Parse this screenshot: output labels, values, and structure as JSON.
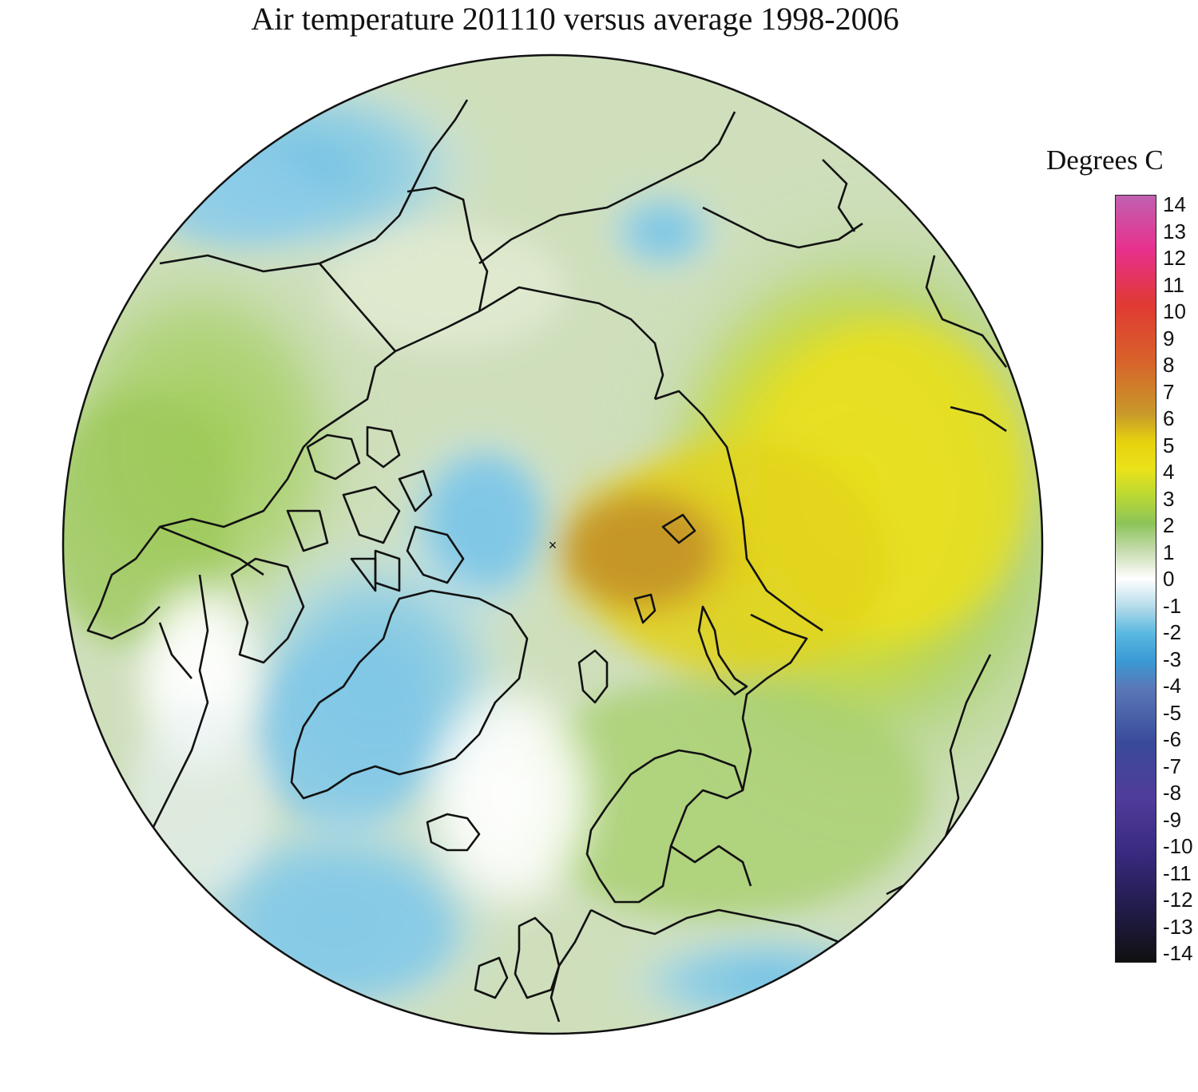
{
  "map": {
    "title": "Air temperature 201110 versus average 1998-2006",
    "projection": "north-polar-stereographic",
    "pole_marker": "×"
  },
  "legend": {
    "title": "Degrees C",
    "min": -14,
    "max": 14,
    "ticks": [
      "14",
      "13",
      "12",
      "11",
      "10",
      "9",
      "8",
      "7",
      "6",
      "5",
      "4",
      "3",
      "2",
      "1",
      "0",
      "-1",
      "-2",
      "-3",
      "-4",
      "-5",
      "-6",
      "-7",
      "-8",
      "-9",
      "-10",
      "-11",
      "-12",
      "-13",
      "-14"
    ],
    "colors": [
      {
        "v": 14,
        "c": "#c060b0"
      },
      {
        "v": 12,
        "c": "#e8308c"
      },
      {
        "v": 10,
        "c": "#e03a32"
      },
      {
        "v": 8,
        "c": "#d8612a"
      },
      {
        "v": 6,
        "c": "#c89a2a"
      },
      {
        "v": 5,
        "c": "#e6d20e"
      },
      {
        "v": 4,
        "c": "#eae21a"
      },
      {
        "v": 3,
        "c": "#b8d834"
      },
      {
        "v": 2,
        "c": "#8cc45a"
      },
      {
        "v": 1,
        "c": "#c8dcb0"
      },
      {
        "v": 0,
        "c": "#ffffff"
      },
      {
        "v": -1,
        "c": "#b6dcea"
      },
      {
        "v": -2,
        "c": "#5ab8e0"
      },
      {
        "v": -3,
        "c": "#3a9ad4"
      },
      {
        "v": -4,
        "c": "#5a78b8"
      },
      {
        "v": -6,
        "c": "#3a4a9a"
      },
      {
        "v": -8,
        "c": "#503c9a"
      },
      {
        "v": -10,
        "c": "#3a2a80"
      },
      {
        "v": -12,
        "c": "#221c4c"
      },
      {
        "v": -14,
        "c": "#101010"
      }
    ]
  },
  "anomaly_regions": [
    {
      "region": "central-siberia-kara-sea",
      "value": 6
    },
    {
      "region": "eastern-siberia",
      "value": 5
    },
    {
      "region": "north-america",
      "value": 2
    },
    {
      "region": "greenland",
      "value": -2
    },
    {
      "region": "beaufort-sea",
      "value": -2
    },
    {
      "region": "north-atlantic",
      "value": -2
    },
    {
      "region": "central-europe",
      "value": -1
    }
  ]
}
